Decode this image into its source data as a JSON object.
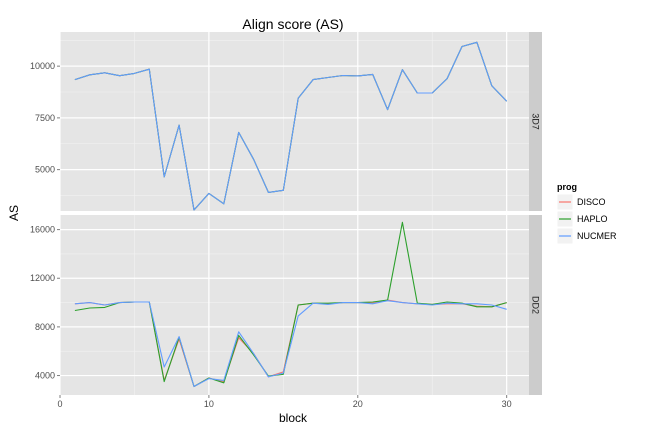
{
  "chart_data": {
    "type": "line",
    "title": "Align score (AS)",
    "xlabel": "block",
    "ylabel": "AS",
    "xlim": [
      0,
      31.5
    ],
    "x_ticks": [
      0,
      10,
      20,
      30
    ],
    "x_tick_labels": [
      "0",
      "10",
      "20",
      "30"
    ],
    "grid": true,
    "legend": {
      "title": "prog",
      "placement": "right",
      "entries": [
        "DISCO",
        "HAPLO",
        "NUCMER"
      ]
    },
    "colors": {
      "DISCO": "#F8766D",
      "HAPLO": "#2CA02C",
      "NUCMER": "#619CFF"
    },
    "x": [
      1,
      2,
      3,
      4,
      5,
      6,
      7,
      8,
      9,
      10,
      11,
      12,
      13,
      14,
      15,
      16,
      17,
      18,
      19,
      20,
      21,
      22,
      23,
      24,
      25,
      26,
      27,
      28,
      29,
      30
    ],
    "panels": [
      {
        "strip_label": "3D7",
        "ylim": [
          3000,
          11650
        ],
        "y_ticks": [
          5000,
          7500,
          10000
        ],
        "y_tick_labels": [
          "5000",
          "7500",
          "10000"
        ],
        "series": [
          {
            "name": "DISCO",
            "values": [
              9350,
              9580,
              9680,
              9540,
              9650,
              9850,
              4650,
              7150,
              3050,
              3850,
              3350,
              6800,
              5500,
              3900,
              4000,
              8450,
              9350,
              9450,
              9550,
              9530,
              9600,
              7900,
              9830,
              8700,
              8700,
              9400,
              10950,
              11150,
              9050,
              8300
            ]
          },
          {
            "name": "HAPLO",
            "values": [
              9350,
              9580,
              9680,
              9540,
              9650,
              9850,
              4650,
              7150,
              3050,
              3850,
              3350,
              6800,
              5500,
              3900,
              4000,
              8450,
              9350,
              9450,
              9550,
              9530,
              9600,
              7900,
              9830,
              8700,
              8700,
              9400,
              10950,
              11150,
              9050,
              8300
            ]
          },
          {
            "name": "NUCMER",
            "values": [
              9350,
              9580,
              9680,
              9540,
              9650,
              9850,
              4650,
              7150,
              3050,
              3850,
              3350,
              6800,
              5500,
              3900,
              4000,
              8450,
              9350,
              9450,
              9550,
              9530,
              9600,
              7900,
              9830,
              8700,
              8700,
              9400,
              10950,
              11150,
              9050,
              8300
            ]
          }
        ]
      },
      {
        "strip_label": "DD2",
        "ylim": [
          2400,
          17200
        ],
        "y_ticks": [
          4000,
          8000,
          12000,
          16000
        ],
        "y_tick_labels": [
          "4000",
          "8000",
          "12000",
          "16000"
        ],
        "series": [
          {
            "name": "DISCO",
            "values": [
              9900,
              10000,
              9800,
              10000,
              10050,
              10050,
              3600,
              7000,
              3100,
              3800,
              3500,
              7100,
              5800,
              3900,
              4300,
              9800,
              9950,
              9900,
              10000,
              10000,
              9950,
              10200,
              10000,
              9900,
              9850,
              9900,
              9900,
              9700,
              9650,
              10000
            ]
          },
          {
            "name": "HAPLO",
            "values": [
              9350,
              9550,
              9600,
              10000,
              10050,
              10050,
              3500,
              7150,
              3100,
              3800,
              3400,
              7300,
              5700,
              3950,
              4100,
              9800,
              9950,
              9950,
              10000,
              10000,
              10050,
              10200,
              16600,
              9950,
              9850,
              10050,
              9950,
              9650,
              9650,
              10000
            ]
          },
          {
            "name": "NUCMER",
            "values": [
              9900,
              10000,
              9800,
              10000,
              10050,
              10050,
              4700,
              7200,
              3100,
              3750,
              3600,
              7600,
              5800,
              3900,
              4200,
              8900,
              9950,
              9850,
              10000,
              10000,
              9900,
              10150,
              10000,
              9900,
              9800,
              9950,
              9900,
              9900,
              9800,
              9450
            ]
          }
        ]
      }
    ]
  }
}
